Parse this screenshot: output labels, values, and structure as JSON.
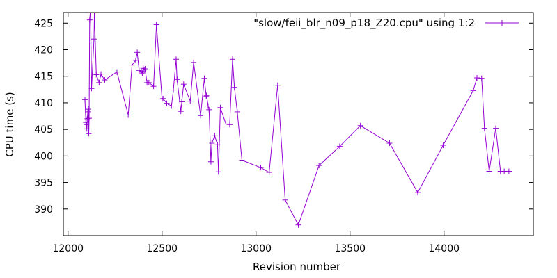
{
  "chart_data": {
    "type": "line",
    "xlabel": "Revision number",
    "ylabel": "CPU time (s)",
    "xlim": [
      11975,
      14475
    ],
    "ylim": [
      385,
      427
    ],
    "xticks": [
      12000,
      12500,
      13000,
      13500,
      14000
    ],
    "yticks": [
      390,
      395,
      400,
      405,
      410,
      415,
      420,
      425
    ],
    "grid": false,
    "legend_position": "top-right",
    "colors": {
      "series": "#9400d3",
      "axes": "#000000"
    },
    "series": [
      {
        "name": "\"slow/feii_blr_n09_p18_Z20.cpu\" using 1:2",
        "marker": "plus",
        "x": [
          12090,
          12095,
          12098,
          12100,
          12102,
          12105,
          12108,
          12110,
          12112,
          12115,
          12118,
          12120,
          12125,
          12138,
          12140,
          12150,
          12165,
          12175,
          12195,
          12260,
          12320,
          12340,
          12360,
          12368,
          12378,
          12390,
          12395,
          12400,
          12405,
          12410,
          12420,
          12430,
          12455,
          12470,
          12500,
          12505,
          12525,
          12550,
          12560,
          12575,
          12580,
          12600,
          12605,
          12615,
          12650,
          12668,
          12705,
          12725,
          12735,
          12737,
          12745,
          12750,
          12760,
          12765,
          12780,
          12795,
          12800,
          12810,
          12840,
          12860,
          12875,
          12885,
          12900,
          12925,
          13025,
          13070,
          13115,
          13155,
          13225,
          13335,
          13445,
          13555,
          13710,
          13860,
          13995,
          14155,
          14175,
          14200,
          14215,
          14240,
          14275,
          14300,
          14320,
          14345
        ],
        "y": [
          410.6,
          406.3,
          405.9,
          405.1,
          407.0,
          408.3,
          408.8,
          404.2,
          407.1,
          425.6,
          427.0,
          427.0,
          412.7,
          422.0,
          427.0,
          415.3,
          413.8,
          415.4,
          414.3,
          415.8,
          407.7,
          417.1,
          418.0,
          419.5,
          416.1,
          415.9,
          415.6,
          416.5,
          416.2,
          416.4,
          413.8,
          413.8,
          413.1,
          424.7,
          410.7,
          410.8,
          409.9,
          409.4,
          412.4,
          418.2,
          414.4,
          408.4,
          410.2,
          413.5,
          410.3,
          417.6,
          407.6,
          414.6,
          411.2,
          411.4,
          409.4,
          408.7,
          398.9,
          402.4,
          403.8,
          402.1,
          397.0,
          409.1,
          406.0,
          405.9,
          418.2,
          412.9,
          408.3,
          399.2,
          397.8,
          396.9,
          413.3,
          391.7,
          387.0,
          398.2,
          401.8,
          405.7,
          402.4,
          393.1,
          402.0,
          412.3,
          414.7,
          414.6,
          405.2,
          397.1,
          405.2,
          397.1,
          397.1,
          397.1
        ]
      }
    ]
  }
}
